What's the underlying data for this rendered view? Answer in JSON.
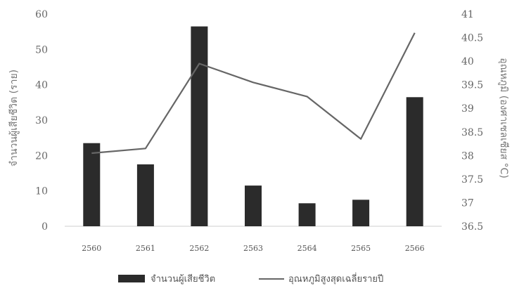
{
  "chart_data": {
    "type": "bar",
    "categories": [
      "2560",
      "2561",
      "2562",
      "2563",
      "2564",
      "2565",
      "2566"
    ],
    "series": [
      {
        "name": "จำนวนผู้เสียชีวิต",
        "type": "bar",
        "axis": "left",
        "color": "#2b2b2b",
        "values": [
          23.5,
          17.5,
          56.5,
          11.5,
          6.5,
          7.5,
          36.5
        ]
      },
      {
        "name": "อุณหภูมิสูงสุดเฉลี่ยรายปี",
        "type": "line",
        "axis": "right",
        "color": "#666666",
        "values": [
          38.05,
          38.15,
          39.95,
          39.55,
          39.25,
          38.35,
          40.6
        ]
      }
    ],
    "ylabel": "จำนวนผู้เสียชีวิต (ราย)",
    "y2label": "อุณหภูมิ (องศาเซลเซียส °C)",
    "ylim": [
      0,
      60
    ],
    "y2lim": [
      36.5,
      41
    ],
    "yticks": [
      "0",
      "10",
      "20",
      "30",
      "40",
      "50",
      "60"
    ],
    "y2ticks": [
      "36.5",
      "37",
      "37.5",
      "38",
      "38.5",
      "39",
      "39.5",
      "40",
      "40.5",
      "41"
    ],
    "grid": false,
    "legend": "bottom"
  }
}
